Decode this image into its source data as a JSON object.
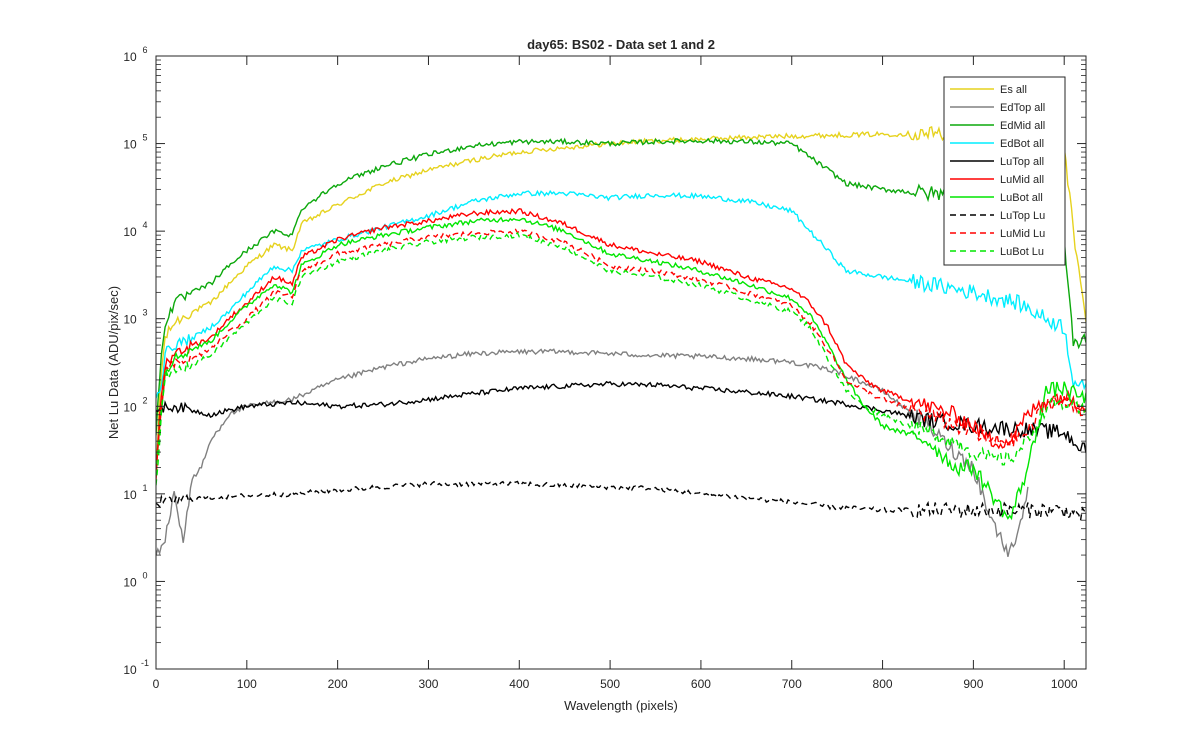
{
  "chart_data": {
    "type": "line",
    "title": "day65: BS02 - Data set 1 and 2",
    "xlabel": "Wavelength (pixels)",
    "ylabel": "Net Lu Data (ADU/pix/sec)",
    "xlim": [
      0,
      1024
    ],
    "ylim": [
      0.1,
      1000000
    ],
    "yscale": "log",
    "legend_position": "top-right",
    "x_ticks": [
      0,
      100,
      200,
      300,
      400,
      500,
      600,
      700,
      800,
      900,
      1000
    ],
    "y_ticks": [
      {
        "value": 0.1,
        "base": "10",
        "exp": "-1"
      },
      {
        "value": 1,
        "base": "10",
        "exp": "0"
      },
      {
        "value": 10,
        "base": "10",
        "exp": "1"
      },
      {
        "value": 100,
        "base": "10",
        "exp": "2"
      },
      {
        "value": 1000,
        "base": "10",
        "exp": "3"
      },
      {
        "value": 10000,
        "base": "10",
        "exp": "4"
      },
      {
        "value": 100000,
        "base": "10",
        "exp": "5"
      },
      {
        "value": 1000000,
        "base": "10",
        "exp": "6"
      }
    ],
    "series": [
      {
        "name": "Es  all",
        "color": "#e6d21e",
        "dash": "solid",
        "x": [
          0,
          5,
          10,
          20,
          40,
          60,
          80,
          100,
          130,
          150,
          160,
          200,
          250,
          300,
          350,
          400,
          450,
          500,
          550,
          600,
          650,
          700,
          750,
          800,
          850,
          900,
          950,
          980,
          1000,
          1010,
          1024
        ],
        "y": [
          15,
          200,
          600,
          900,
          1200,
          1500,
          2500,
          4000,
          7000,
          6000,
          12000,
          20000,
          35000,
          50000,
          65000,
          80000,
          90000,
          100000,
          108000,
          112000,
          118000,
          122000,
          125000,
          128000,
          130000,
          132000,
          133000,
          130000,
          100000,
          10000,
          900
        ]
      },
      {
        "name": "EdTop  all",
        "color": "#808080",
        "dash": "solid",
        "x": [
          0,
          10,
          20,
          30,
          40,
          50,
          60,
          80,
          100,
          150,
          200,
          250,
          300,
          350,
          400,
          450,
          500,
          550,
          600,
          650,
          700,
          750,
          800,
          850,
          880,
          900,
          920,
          940,
          960
        ],
        "y": [
          2,
          3,
          10,
          3,
          15,
          20,
          40,
          80,
          100,
          120,
          200,
          280,
          350,
          400,
          420,
          420,
          400,
          380,
          370,
          350,
          320,
          250,
          150,
          60,
          30,
          20,
          5,
          2,
          10
        ]
      },
      {
        "name": "EdMid  all",
        "color": "#0ca80c",
        "dash": "solid",
        "x": [
          0,
          5,
          10,
          20,
          40,
          60,
          80,
          100,
          130,
          150,
          160,
          200,
          250,
          300,
          350,
          400,
          450,
          500,
          550,
          600,
          650,
          700,
          720,
          740,
          760,
          800,
          850,
          900,
          950,
          980,
          1000,
          1010,
          1024
        ],
        "y": [
          50,
          300,
          900,
          1500,
          2000,
          2500,
          4000,
          6000,
          10000,
          9000,
          18000,
          35000,
          55000,
          75000,
          95000,
          105000,
          105000,
          100000,
          105000,
          108000,
          105000,
          100000,
          70000,
          50000,
          35000,
          30000,
          27000,
          25000,
          23000,
          20000,
          8000,
          500,
          600
        ]
      },
      {
        "name": "EdBot  all",
        "color": "#00eeff",
        "dash": "solid",
        "x": [
          0,
          5,
          10,
          20,
          40,
          60,
          80,
          100,
          130,
          150,
          160,
          200,
          250,
          300,
          350,
          400,
          450,
          500,
          550,
          600,
          650,
          700,
          720,
          740,
          760,
          800,
          850,
          900,
          950,
          980,
          1000,
          1010,
          1024
        ],
        "y": [
          140,
          150,
          400,
          500,
          600,
          800,
          1200,
          2000,
          4000,
          3500,
          6000,
          8000,
          11000,
          15000,
          22000,
          27000,
          27000,
          24000,
          26000,
          25000,
          22000,
          17000,
          10000,
          6000,
          3500,
          3000,
          2500,
          2000,
          1500,
          1000,
          800,
          200,
          150
        ]
      },
      {
        "name": "LuTop  all",
        "color": "#000000",
        "dash": "solid",
        "x": [
          0,
          20,
          40,
          60,
          80,
          100,
          150,
          200,
          250,
          300,
          350,
          400,
          450,
          500,
          550,
          600,
          650,
          700,
          750,
          800,
          850,
          900,
          950,
          1000,
          1024
        ],
        "y": [
          95,
          100,
          90,
          80,
          90,
          100,
          110,
          100,
          105,
          120,
          140,
          160,
          170,
          180,
          175,
          160,
          145,
          130,
          110,
          90,
          70,
          60,
          55,
          50,
          30
        ]
      },
      {
        "name": "LuMid  all",
        "color": "#ff0000",
        "dash": "solid",
        "x": [
          0,
          5,
          10,
          20,
          40,
          60,
          80,
          100,
          130,
          150,
          160,
          200,
          250,
          300,
          350,
          400,
          450,
          500,
          550,
          600,
          650,
          700,
          720,
          740,
          760,
          780,
          800,
          850,
          880,
          900,
          920,
          940,
          960,
          980,
          1000,
          1010,
          1024
        ],
        "y": [
          20,
          100,
          300,
          400,
          500,
          600,
          1000,
          1500,
          3000,
          2500,
          5000,
          8000,
          11000,
          13000,
          16000,
          17000,
          12000,
          7000,
          5500,
          4500,
          3000,
          2200,
          1500,
          800,
          300,
          200,
          150,
          100,
          80,
          60,
          40,
          40,
          80,
          120,
          130,
          120,
          100
        ]
      },
      {
        "name": "LuBot  all",
        "color": "#00e600",
        "dash": "solid",
        "x": [
          0,
          5,
          10,
          20,
          40,
          60,
          80,
          100,
          130,
          150,
          160,
          200,
          250,
          300,
          350,
          400,
          450,
          500,
          550,
          600,
          650,
          700,
          720,
          740,
          760,
          780,
          800,
          850,
          880,
          900,
          920,
          940,
          960,
          980,
          1000,
          1010,
          1024
        ],
        "y": [
          20,
          80,
          250,
          350,
          450,
          550,
          900,
          1400,
          2500,
          2000,
          4000,
          7000,
          9000,
          11000,
          13000,
          14000,
          10000,
          5500,
          4500,
          3500,
          2500,
          1700,
          1100,
          500,
          200,
          100,
          60,
          40,
          20,
          20,
          10,
          5,
          20,
          150,
          160,
          140,
          120
        ]
      },
      {
        "name": "LuTop  Lu",
        "color": "#000000",
        "dash": "dashed",
        "x": [
          0,
          50,
          100,
          150,
          200,
          250,
          300,
          350,
          400,
          450,
          500,
          550,
          600,
          650,
          700,
          750,
          800,
          850,
          900,
          950,
          1000,
          1024
        ],
        "y": [
          8,
          9,
          9.5,
          10,
          11,
          12,
          13,
          13,
          13,
          12.5,
          12,
          11.5,
          10,
          9,
          8,
          7,
          6.5,
          6.5,
          6.5,
          6.5,
          6.5,
          5.5
        ]
      },
      {
        "name": "LuMid  Lu",
        "color": "#ff0000",
        "dash": "dashed",
        "x": [
          0,
          5,
          10,
          20,
          40,
          60,
          80,
          100,
          130,
          150,
          160,
          200,
          250,
          300,
          350,
          400,
          450,
          500,
          550,
          600,
          650,
          700,
          720,
          740,
          760,
          780,
          800,
          850,
          880,
          900,
          920,
          940,
          960,
          980,
          1000,
          1010,
          1024
        ],
        "y": [
          15,
          80,
          250,
          300,
          350,
          450,
          700,
          1000,
          2000,
          1800,
          3500,
          5500,
          7000,
          8500,
          9500,
          10000,
          7500,
          4000,
          3500,
          2800,
          2000,
          1400,
          900,
          450,
          200,
          150,
          120,
          80,
          60,
          50,
          40,
          40,
          50,
          110,
          110,
          100,
          90
        ]
      },
      {
        "name": "LuBot  Lu",
        "color": "#00e600",
        "dash": "dashed",
        "x": [
          0,
          5,
          10,
          20,
          40,
          60,
          80,
          100,
          130,
          150,
          160,
          200,
          250,
          300,
          350,
          400,
          450,
          500,
          550,
          600,
          650,
          700,
          720,
          740,
          760,
          780,
          800,
          850,
          880,
          900,
          920,
          940,
          960,
          980,
          1000,
          1010,
          1024
        ],
        "y": [
          12,
          60,
          200,
          250,
          300,
          380,
          600,
          900,
          1700,
          1500,
          3000,
          4500,
          6000,
          7500,
          8500,
          9000,
          6500,
          3500,
          3000,
          2400,
          1700,
          1200,
          800,
          350,
          150,
          100,
          80,
          50,
          40,
          30,
          25,
          25,
          40,
          100,
          110,
          95,
          85
        ]
      }
    ]
  }
}
